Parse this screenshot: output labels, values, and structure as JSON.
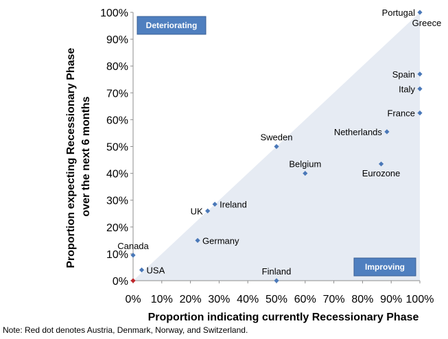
{
  "chart_data": {
    "type": "scatter",
    "title": "",
    "xlabel": "Proportion indicating currently Recessionary Phase",
    "ylabel_lines": [
      "Proportion expecting Recessionary Phase",
      "over the next 6 months"
    ],
    "xlim": [
      0,
      100
    ],
    "ylim": [
      0,
      100
    ],
    "x_ticks": [
      "0%",
      "10%",
      "20%",
      "30%",
      "40%",
      "50%",
      "60%",
      "70%",
      "80%",
      "90%",
      "100%"
    ],
    "y_ticks": [
      "0%",
      "10%",
      "20%",
      "30%",
      "40%",
      "50%",
      "60%",
      "70%",
      "80%",
      "90%",
      "100%"
    ],
    "grid": false,
    "regions": [
      {
        "name": "Deteriorating",
        "label": "Deteriorating",
        "placement": "top-left"
      },
      {
        "name": "Improving",
        "label": "Improving",
        "placement": "bottom-right"
      }
    ],
    "points": [
      {
        "label": "Portugal",
        "x": 100,
        "y": 100,
        "label_pos": "left"
      },
      {
        "label": "Greece",
        "x": 100,
        "y": 100,
        "label_pos": "below-right"
      },
      {
        "label": "Spain",
        "x": 100,
        "y": 77,
        "label_pos": "left"
      },
      {
        "label": "Italy",
        "x": 100,
        "y": 71.5,
        "label_pos": "left"
      },
      {
        "label": "France",
        "x": 100,
        "y": 62.5,
        "label_pos": "left"
      },
      {
        "label": "Netherlands",
        "x": 88.5,
        "y": 55.5,
        "label_pos": "left"
      },
      {
        "label": "Sweden",
        "x": 50,
        "y": 50,
        "label_pos": "above"
      },
      {
        "label": "Eurozone",
        "x": 86.5,
        "y": 43.5,
        "label_pos": "below"
      },
      {
        "label": "Belgium",
        "x": 60,
        "y": 40,
        "label_pos": "above"
      },
      {
        "label": "Ireland",
        "x": 28.5,
        "y": 28.5,
        "label_pos": "right"
      },
      {
        "label": "UK",
        "x": 26,
        "y": 26,
        "label_pos": "left"
      },
      {
        "label": "Germany",
        "x": 22.5,
        "y": 15,
        "label_pos": "right"
      },
      {
        "label": "Canada",
        "x": 0,
        "y": 9.5,
        "label_pos": "above"
      },
      {
        "label": "USA",
        "x": 3,
        "y": 4,
        "label_pos": "right"
      },
      {
        "label": "Finland",
        "x": 50,
        "y": 0,
        "label_pos": "above"
      }
    ],
    "red_point": {
      "x": 0,
      "y": 0
    },
    "colors": {
      "marker": "#4a78b8",
      "red_marker": "#c0262b",
      "triangle_fill": "#e6ebf3",
      "region_box": "#4f7fbf",
      "region_box_border": "#3a5f94"
    }
  },
  "note": "Note: Red dot denotes Austria, Denmark, Norway, and Switzerland."
}
